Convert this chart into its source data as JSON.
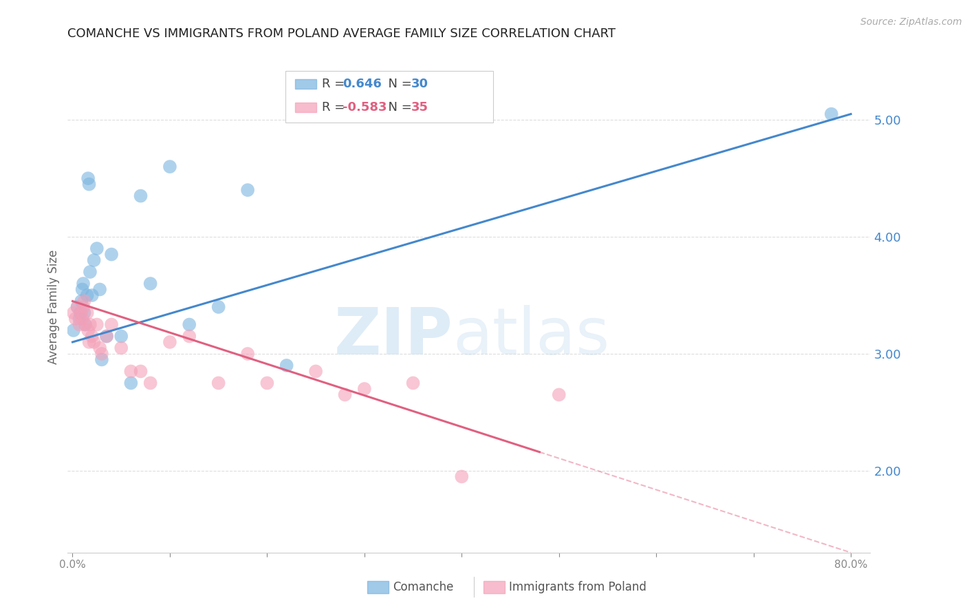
{
  "title": "COMANCHE VS IMMIGRANTS FROM POLAND AVERAGE FAMILY SIZE CORRELATION CHART",
  "source": "Source: ZipAtlas.com",
  "ylabel": "Average Family Size",
  "right_yticks": [
    2.0,
    3.0,
    4.0,
    5.0
  ],
  "legend_labels": [
    "Comanche",
    "Immigrants from Poland"
  ],
  "comanche_x": [
    0.1,
    0.5,
    0.7,
    0.8,
    0.9,
    1.0,
    1.1,
    1.2,
    1.3,
    1.5,
    1.6,
    1.7,
    1.8,
    2.0,
    2.2,
    2.5,
    2.8,
    3.0,
    3.5,
    4.0,
    5.0,
    6.0,
    7.0,
    8.0,
    10.0,
    12.0,
    15.0,
    18.0,
    22.0,
    78.0
  ],
  "comanche_y": [
    3.2,
    3.4,
    3.3,
    3.35,
    3.45,
    3.55,
    3.6,
    3.35,
    3.25,
    3.5,
    4.5,
    4.45,
    3.7,
    3.5,
    3.8,
    3.9,
    3.55,
    2.95,
    3.15,
    3.85,
    3.15,
    2.75,
    4.35,
    3.6,
    4.6,
    3.25,
    3.4,
    4.4,
    2.9,
    5.05
  ],
  "poland_x": [
    0.1,
    0.3,
    0.5,
    0.7,
    0.9,
    1.0,
    1.1,
    1.2,
    1.3,
    1.5,
    1.6,
    1.7,
    1.8,
    2.0,
    2.2,
    2.5,
    2.8,
    3.0,
    3.5,
    4.0,
    5.0,
    6.0,
    7.0,
    8.0,
    10.0,
    12.0,
    15.0,
    18.0,
    20.0,
    25.0,
    28.0,
    30.0,
    35.0,
    40.0,
    50.0
  ],
  "poland_y": [
    3.35,
    3.3,
    3.4,
    3.25,
    3.35,
    3.3,
    3.4,
    3.45,
    3.25,
    3.35,
    3.2,
    3.1,
    3.25,
    3.15,
    3.1,
    3.25,
    3.05,
    3.0,
    3.15,
    3.25,
    3.05,
    2.85,
    2.85,
    2.75,
    3.1,
    3.15,
    2.75,
    3.0,
    2.75,
    2.85,
    2.65,
    2.7,
    2.75,
    1.95,
    2.65
  ],
  "comanche_color": "#7ab4e0",
  "poland_color": "#f4a0b8",
  "trend_blue": "#4488cc",
  "trend_pink": "#e06080",
  "bg_color": "#ffffff",
  "grid_color": "#dddddd",
  "title_color": "#222222",
  "right_axis_color": "#4488cc",
  "ylim_bottom": 1.3,
  "ylim_top": 5.5,
  "xlim_left": -0.5,
  "xlim_right": 82.0,
  "trend_blue_x0": 0.0,
  "trend_blue_y0": 3.1,
  "trend_blue_x1": 80.0,
  "trend_blue_y1": 5.05,
  "trend_pink_x0": 0.0,
  "trend_pink_y0": 3.45,
  "trend_pink_x1": 80.0,
  "trend_pink_y1": 1.3,
  "trend_pink_solid_end": 48.0
}
